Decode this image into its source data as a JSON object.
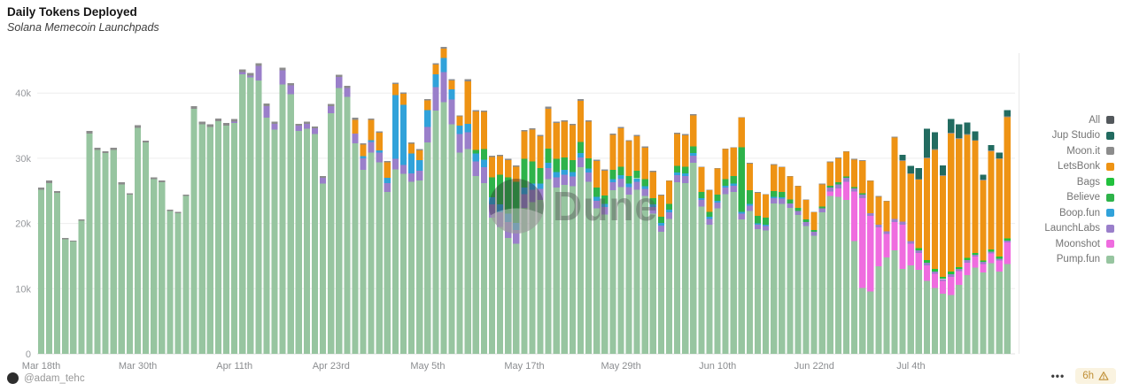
{
  "header": {
    "title": "Daily Tokens Deployed",
    "subtitle": "Solana Memecoin Launchpads"
  },
  "watermark": {
    "label": "Dune"
  },
  "footer": {
    "author_handle": "@adam_tehc",
    "menu_label": "•••",
    "refresh_age": "6h"
  },
  "chart_data": {
    "type": "bar",
    "variant": "stacked",
    "title": "Daily Tokens Deployed",
    "subtitle": "Solana Memecoin Launchpads",
    "unit": "thousands of tokens per day",
    "grid": "horizontal",
    "legend_position": "right",
    "stacking": "series listed top-to-bottom as in legend; bars stack bottom-to-top in reverse of this order (Pump.fun at base)",
    "ylim": [
      0,
      47.5
    ],
    "y_ticks": [
      {
        "value": 0,
        "label": "0"
      },
      {
        "value": 10,
        "label": "10k"
      },
      {
        "value": 20,
        "label": "20k"
      },
      {
        "value": 30,
        "label": "30k"
      },
      {
        "value": 40,
        "label": "40k"
      }
    ],
    "x_ticks": [
      {
        "index": 0,
        "label": "Mar 18th"
      },
      {
        "index": 12,
        "label": "Mar 30th"
      },
      {
        "index": 24,
        "label": "Apr 11th"
      },
      {
        "index": 36,
        "label": "Apr 23rd"
      },
      {
        "index": 48,
        "label": "May 5th"
      },
      {
        "index": 60,
        "label": "May 17th"
      },
      {
        "index": 72,
        "label": "May 29th"
      },
      {
        "index": 84,
        "label": "Jun 10th"
      },
      {
        "index": 96,
        "label": "Jun 22nd"
      },
      {
        "index": 108,
        "label": "Jul 4th"
      }
    ],
    "dates": [
      "Mar 18",
      "Mar 19",
      "Mar 20",
      "Mar 21",
      "Mar 22",
      "Mar 23",
      "Mar 24",
      "Mar 25",
      "Mar 26",
      "Mar 27",
      "Mar 28",
      "Mar 29",
      "Mar 30",
      "Mar 31",
      "Apr 1",
      "Apr 2",
      "Apr 3",
      "Apr 4",
      "Apr 5",
      "Apr 6",
      "Apr 7",
      "Apr 8",
      "Apr 9",
      "Apr 10",
      "Apr 11",
      "Apr 12",
      "Apr 13",
      "Apr 14",
      "Apr 15",
      "Apr 16",
      "Apr 17",
      "Apr 18",
      "Apr 19",
      "Apr 20",
      "Apr 21",
      "Apr 22",
      "Apr 23",
      "Apr 24",
      "Apr 25",
      "Apr 26",
      "Apr 27",
      "Apr 28",
      "Apr 29",
      "Apr 30",
      "May 1",
      "May 2",
      "May 3",
      "May 4",
      "May 5",
      "May 6",
      "May 7",
      "May 8",
      "May 9",
      "May 10",
      "May 11",
      "May 12",
      "May 13",
      "May 14",
      "May 15",
      "May 16",
      "May 17",
      "May 18",
      "May 19",
      "May 20",
      "May 21",
      "May 22",
      "May 23",
      "May 24",
      "May 25",
      "May 26",
      "May 27",
      "May 28",
      "May 29",
      "May 30",
      "May 31",
      "Jun 1",
      "Jun 2",
      "Jun 3",
      "Jun 4",
      "Jun 5",
      "Jun 6",
      "Jun 7",
      "Jun 8",
      "Jun 9",
      "Jun 10",
      "Jun 11",
      "Jun 12",
      "Jun 13",
      "Jun 14",
      "Jun 15",
      "Jun 16",
      "Jun 17",
      "Jun 18",
      "Jun 19",
      "Jun 20",
      "Jun 21",
      "Jun 22",
      "Jun 23",
      "Jun 24",
      "Jun 25",
      "Jun 26",
      "Jun 27",
      "Jun 28",
      "Jun 29",
      "Jun 30",
      "Jul 1",
      "Jul 2",
      "Jul 3",
      "Jul 4",
      "Jul 5",
      "Jul 6",
      "Jul 7",
      "Jul 8",
      "Jul 9",
      "Jul 10",
      "Jul 11",
      "Jul 12",
      "Jul 13",
      "Jul 14",
      "Jul 15",
      "Jul 16"
    ],
    "series": [
      {
        "label": "All",
        "color": "#53585c",
        "offset": 0,
        "values": []
      },
      {
        "label": "Jup Studio",
        "color": "#226b60",
        "offset": 107,
        "values": [
          0.8,
          1.1,
          1.7,
          4.4,
          2.6,
          1.5,
          2.1,
          2.1,
          1.8,
          1.3,
          0.8,
          0.8,
          0.9,
          1.0
        ]
      },
      {
        "label": "Moon.it",
        "color": "#8c8c8c",
        "offset": 0,
        "values": [
          0.3,
          0.4,
          0.3,
          0.2,
          0.2,
          0.2,
          0.4,
          0.3,
          0.3,
          0.3,
          0.3,
          0.2,
          0.4,
          0.3,
          0.3,
          0.3,
          0.2,
          0.2,
          0.2,
          0.4,
          0.4,
          0.4,
          0.4,
          0.4,
          0.4,
          0.4,
          0.4,
          0.4,
          0.4,
          0.3,
          0.4,
          0.3,
          0.3,
          0.3,
          0.3,
          0.3,
          0.3,
          0.3,
          0.3,
          0.3,
          0.2,
          0.2,
          0.2,
          0.2,
          0.2,
          0.2,
          0.2,
          0.2,
          0.2,
          0.2,
          0.3,
          0.2,
          0.2,
          0.3,
          0.2,
          0.2,
          0.2,
          0.2,
          0.2,
          0.2,
          0.2,
          0.2,
          0.2,
          0.3,
          0.2,
          0.2,
          0.2,
          0.3,
          0.2,
          0.2,
          0.2,
          0.2,
          0.2,
          0.2,
          0.2,
          0.2,
          0.2,
          0.1,
          0.1,
          0.2,
          0.2,
          0.2,
          0.1,
          0.1,
          0.1,
          0.1,
          0.1,
          0.1,
          0.1,
          0.1,
          0.1,
          0.1,
          0.1,
          0.1,
          0.1,
          0.1,
          0.1,
          0.1,
          0.1,
          0.1,
          0.1,
          0.1,
          0.1,
          0.1,
          0.1,
          0.1,
          0.1,
          0.1,
          0.1,
          0.1,
          0.1,
          0.1,
          0.1,
          0.1,
          0.1,
          0.1,
          0.1,
          0.1,
          0.1,
          0.1,
          0.1
        ]
      },
      {
        "label": "LetsBonk",
        "color": "#ee9314",
        "offset": 39,
        "values": [
          2.1,
          1.8,
          3.1,
          2.7,
          2.4,
          1.7,
          1.7,
          1.5,
          1.5,
          1.5,
          1.5,
          1.4,
          1.3,
          1.4,
          6.5,
          5.9,
          5.7,
          3.1,
          2.8,
          2.6,
          2.3,
          4.2,
          4.9,
          4.9,
          6.1,
          5.5,
          5.5,
          5.4,
          6.3,
          5.6,
          4.1,
          3.8,
          5.4,
          5.9,
          5.3,
          5.3,
          4.8,
          4.0,
          3.3,
          3.5,
          4.9,
          4.8,
          4.8,
          3.8,
          3.3,
          4.0,
          4.6,
          4.3,
          4.5,
          4.1,
          3.5,
          3.5,
          4.0,
          3.8,
          3.5,
          3.3,
          3.0,
          2.7,
          3.4,
          3.6,
          3.7,
          3.8,
          4.2,
          5.0,
          4.9,
          4.3,
          4.6,
          12.5,
          9.3,
          10.3,
          10.5,
          15.6,
          18.3,
          15.5,
          21.2,
          19.7,
          18.9,
          17.2,
          12.3,
          15.1,
          15.0,
          18.6
        ]
      },
      {
        "label": "Bags",
        "color": "#21c13d",
        "offset": 109,
        "values": [
          0.3,
          0.4,
          0.4,
          0.3,
          0.4,
          0.3,
          0.3,
          0.3,
          0.2,
          0.3,
          0.3,
          0.3
        ]
      },
      {
        "label": "Believe",
        "color": "#2eb34a",
        "offset": 54,
        "values": [
          0.6,
          1.6,
          3.1,
          4.6,
          5.6,
          6.3,
          4.4,
          3.4,
          2.4,
          2.2,
          2.0,
          1.9,
          1.8,
          1.7,
          1.6,
          1.4,
          1.3,
          1.4,
          1.3,
          1.2,
          1.2,
          1.1,
          1.0,
          0.9,
          0.9,
          1.0,
          1.0,
          1.0,
          0.9,
          0.8,
          0.9,
          1.0,
          1.2,
          9.9,
          2.1,
          1.2,
          1.1,
          0.9,
          0.8,
          0.6,
          0.5,
          0.4,
          0.3,
          0.3,
          0.3,
          0.3,
          0.2,
          0.2,
          0.2
        ]
      },
      {
        "label": "Boop.fun",
        "color": "#31a2da",
        "offset": 40,
        "values": [
          0.3,
          0.3,
          0.3,
          0.8,
          9.8,
          9.2,
          3.0,
          1.6,
          2.6,
          2.0,
          2.2,
          1.6,
          1.3,
          1.3,
          1.2,
          1.2,
          1.1,
          1.2,
          1.3,
          1.1,
          1.0,
          0.9,
          0.8,
          0.8,
          0.8,
          0.7,
          0.7,
          0.7,
          0.6,
          0.6,
          0.5,
          0.5,
          0.5,
          0.5,
          0.5,
          0.4,
          0.4,
          0.4,
          0.4,
          0.4,
          0.4,
          0.4,
          0.3,
          0.3,
          0.3,
          0.3,
          0.3,
          0.3,
          0.3,
          0.2,
          0.2,
          0.2,
          0.2
        ]
      },
      {
        "label": "LaunchLabs",
        "color": "#9a7fca",
        "offset": 24,
        "values": [
          0.2,
          0.3,
          0.3,
          2.3,
          1.8,
          0.9,
          2.2,
          1.4,
          0.8,
          0.8,
          0.9,
          0.9,
          1.1,
          1.7,
          1.4,
          1.5,
          1.8,
          1.6,
          1.5,
          1.4,
          1.6,
          1.4,
          1.3,
          1.5,
          2.4,
          3.6,
          4.6,
          3.8,
          2.8,
          2.6,
          2.2,
          2.4,
          2.0,
          2.2,
          2.4,
          2.1,
          2.1,
          1.9,
          1.7,
          1.7,
          1.6,
          1.6,
          1.5,
          1.5,
          1.4,
          1.2,
          1.1,
          1.2,
          1.3,
          1.2,
          1.2,
          1.1,
          1.0,
          1.0,
          1.0,
          1.1,
          1.1,
          1.1,
          1.0,
          0.9,
          0.9,
          1.0,
          1.0,
          0.9,
          0.8,
          0.7,
          0.7,
          0.8,
          0.8,
          0.7,
          0.6,
          0.6,
          0.6,
          0.6,
          0.6,
          0.6,
          0.6,
          0.5,
          0.5,
          0.4,
          0.4,
          0.4,
          0.5,
          0.5,
          0.4,
          0.4,
          0.4,
          0.3,
          0.3,
          0.4,
          0.3,
          0.4,
          0.3,
          0.3,
          0.3,
          0.3,
          0.3
        ]
      },
      {
        "label": "Moonshot",
        "color": "#ef6cdf",
        "offset": 98,
        "values": [
          0.7,
          1.3,
          2.8,
          7.6,
          13.8,
          11.6,
          6.0,
          3.6,
          4.3,
          6.8,
          3.3,
          2.6,
          2.4,
          2.2,
          2.0,
          2.8,
          2.1,
          1.9,
          1.7,
          1.3,
          1.5,
          1.7,
          3.3
        ]
      },
      {
        "label": "Pump.fun",
        "color": "#97c5a0",
        "offset": 0,
        "values": [
          25.2,
          26.2,
          24.7,
          17.6,
          17.2,
          20.4,
          33.8,
          31.3,
          30.8,
          31.3,
          26.0,
          24.4,
          34.7,
          32.4,
          26.8,
          26.3,
          21.9,
          21.6,
          24.2,
          37.6,
          35.2,
          34.8,
          35.7,
          35.0,
          35.4,
          42.9,
          42.4,
          41.9,
          36.2,
          34.4,
          41.3,
          39.8,
          34.2,
          34.5,
          33.7,
          26.1,
          36.9,
          40.8,
          39.4,
          32.3,
          28.2,
          30.9,
          29.4,
          24.8,
          28.3,
          27.6,
          26.4,
          26.6,
          32.4,
          37.3,
          38.6,
          35.2,
          30.9,
          31.4,
          27.3,
          26.2,
          20.9,
          19.5,
          17.8,
          16.9,
          22.4,
          23.3,
          23.6,
          26.8,
          25.5,
          25.9,
          25.7,
          28.6,
          26.4,
          22.3,
          21.4,
          25.1,
          25.6,
          24.4,
          25.2,
          24.2,
          21.5,
          18.7,
          20.7,
          26.3,
          26.2,
          29.3,
          22.6,
          19.8,
          22.3,
          24.5,
          24.8,
          20.6,
          21.9,
          19.1,
          18.9,
          23.1,
          23.0,
          22.4,
          21.3,
          19.6,
          18.1,
          21.7,
          24.2,
          24.1,
          23.6,
          17.3,
          10.1,
          9.6,
          13.4,
          14.8,
          15.9,
          13.0,
          13.6,
          12.9,
          11.2,
          10.1,
          9.2,
          9.0,
          10.6,
          12.1,
          13.2,
          12.5,
          13.9,
          12.6,
          13.8
        ]
      }
    ]
  }
}
